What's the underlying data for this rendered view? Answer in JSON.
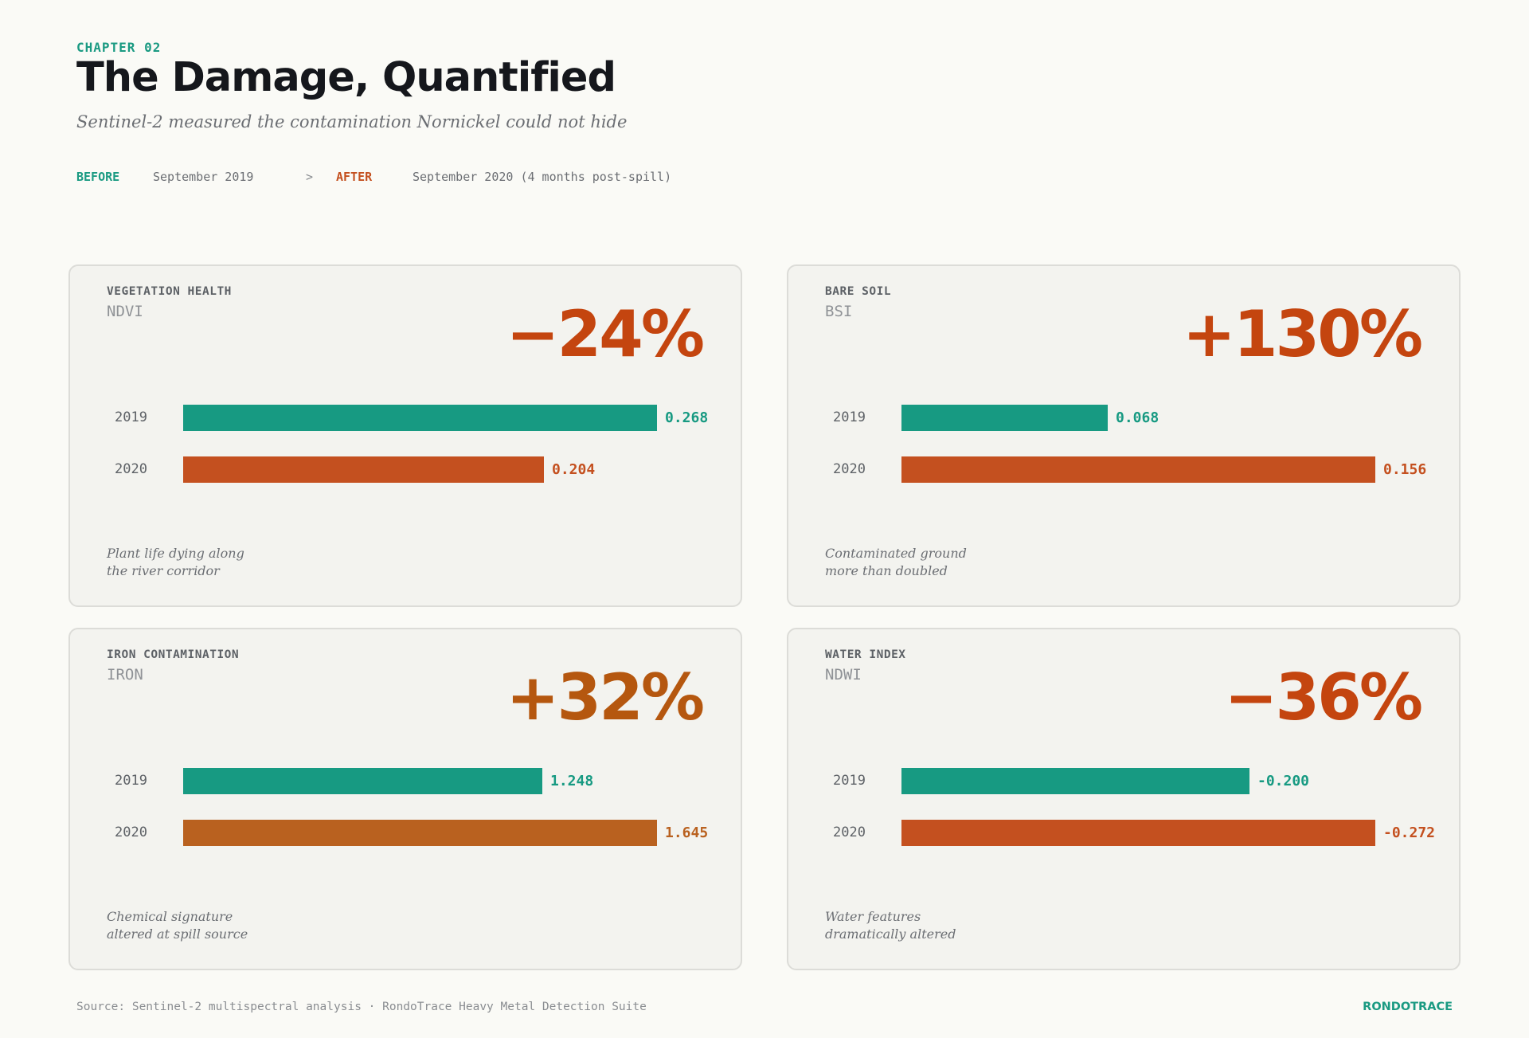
{
  "header": {
    "chapter": "CHAPTER 02",
    "title": "The Damage, Quantified",
    "subtitle": "Sentinel-2 measured the contamination Nornickel could not hide"
  },
  "timeline": {
    "before_label": "BEFORE",
    "before_date": "September 2019",
    "arrow": ">",
    "after_label": "AFTER",
    "after_date": "September 2020 (4 months post-spill)"
  },
  "chart_data": [
    {
      "type": "bar",
      "title": "VEGETATION HEALTH",
      "index": "NDVI",
      "change": "−24%",
      "categories": [
        "2019",
        "2020"
      ],
      "values": [
        0.268,
        0.204
      ],
      "value_labels": [
        "0.268",
        "0.204"
      ],
      "colors": [
        "#179a82",
        "#c4501f"
      ],
      "change_color": "#c4450f",
      "caption": [
        "Plant life dying along",
        "the river corridor"
      ]
    },
    {
      "type": "bar",
      "title": "BARE SOIL",
      "index": "BSI",
      "change": "+130%",
      "categories": [
        "2019",
        "2020"
      ],
      "values": [
        0.068,
        0.156
      ],
      "value_labels": [
        "0.068",
        "0.156"
      ],
      "colors": [
        "#179a82",
        "#c4501f"
      ],
      "change_color": "#c4450f",
      "caption": [
        "Contaminated ground",
        "more than doubled"
      ]
    },
    {
      "type": "bar",
      "title": "IRON CONTAMINATION",
      "index": "IRON",
      "change": "+32%",
      "categories": [
        "2019",
        "2020"
      ],
      "values": [
        1.248,
        1.645
      ],
      "value_labels": [
        "1.248",
        "1.645"
      ],
      "colors": [
        "#179a82",
        "#b9611f"
      ],
      "change_color": "#b5570f",
      "caption": [
        "Chemical signature",
        "altered at spill source"
      ]
    },
    {
      "type": "bar",
      "title": "WATER INDEX",
      "index": "NDWI",
      "change": "−36%",
      "categories": [
        "2019",
        "2020"
      ],
      "values": [
        -0.2,
        -0.272
      ],
      "value_labels": [
        "-0.200",
        "-0.272"
      ],
      "colors": [
        "#179a82",
        "#c4501f"
      ],
      "change_color": "#c4450f",
      "caption": [
        "Water features",
        "dramatically altered"
      ]
    }
  ],
  "footer": {
    "source": "Source: Sentinel-2 multispectral analysis · RondoTrace Heavy Metal Detection Suite",
    "brand": "RONDOTRACE"
  }
}
